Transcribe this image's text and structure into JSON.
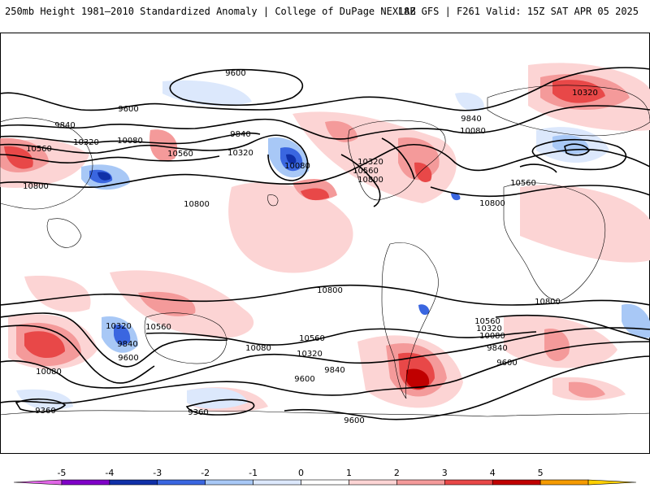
{
  "header": {
    "title_left": "250mb Height 1981–2010 Standardized Anomaly | College of DuPage NEXLAB",
    "title_right": "18Z GFS | F261 Valid: 15Z SAT APR 05 2025"
  },
  "map": {
    "contour_labels": [
      "9600",
      "9600",
      "9840",
      "10320",
      "10080",
      "10560",
      "10560",
      "10800",
      "9840",
      "10320",
      "10080",
      "10800",
      "10320",
      "10560",
      "10800",
      "10320",
      "10080",
      "9840",
      "10560",
      "10800",
      "10800",
      "10800",
      "10320",
      "9840",
      "9600",
      "10560",
      "10080",
      "10560",
      "10320",
      "10080",
      "9840",
      "9600",
      "9600",
      "9360",
      "9360",
      "10560",
      "10320",
      "10080",
      "9840",
      "9600",
      "9600"
    ]
  },
  "colorbar": {
    "tick_labels": [
      "-5",
      "-4",
      "-3",
      "-2",
      "-1",
      "0",
      "1",
      "2",
      "3",
      "4",
      "5"
    ],
    "colors": [
      "#e066e6",
      "#8000c8",
      "#1030a8",
      "#3a66e0",
      "#a8c8f6",
      "#dce8fc",
      "#ffffff",
      "#fcd4d4",
      "#f49a9a",
      "#e84848",
      "#c00000",
      "#f59b00",
      "#ffd000"
    ]
  }
}
